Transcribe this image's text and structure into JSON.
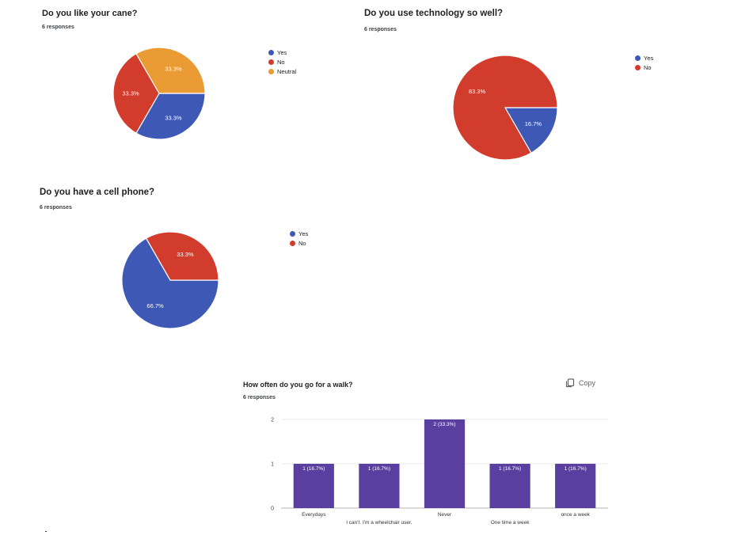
{
  "colors": {
    "blue": "#3d59b5",
    "red": "#d13c2d",
    "orange": "#ea9b33",
    "purple": "#5a3fa0"
  },
  "q1": {
    "title": "Do you like your cane?",
    "responses": "6 responses",
    "chart_data": {
      "type": "pie",
      "title": "Do you like your cane?",
      "slices": [
        {
          "name": "Yes",
          "value": 33.3,
          "label": "33.3%",
          "color": "#3d59b5"
        },
        {
          "name": "No",
          "value": 33.3,
          "label": "33.3%",
          "color": "#d13c2d"
        },
        {
          "name": "Neutral",
          "value": 33.3,
          "label": "33.3%",
          "color": "#ea9b33"
        }
      ],
      "legend": "right"
    }
  },
  "q2": {
    "title": "Do you use technology so well?",
    "responses": "6 responses",
    "chart_data": {
      "type": "pie",
      "title": "Do you use technology so well?",
      "slices": [
        {
          "name": "Yes",
          "value": 16.7,
          "label": "16.7%",
          "color": "#3d59b5"
        },
        {
          "name": "No",
          "value": 83.3,
          "label": "83.3%",
          "color": "#d13c2d"
        }
      ],
      "legend": "right"
    }
  },
  "q3": {
    "title": "Do you have a cell phone?",
    "responses": "6 responses",
    "chart_data": {
      "type": "pie",
      "title": "Do you have a cell phone?",
      "slices": [
        {
          "name": "Yes",
          "value": 66.7,
          "label": "66.7%",
          "color": "#3d59b5"
        },
        {
          "name": "No",
          "value": 33.3,
          "label": "33.3%",
          "color": "#d13c2d"
        }
      ],
      "legend": "right"
    }
  },
  "q4": {
    "title": "How often do you go for a walk?",
    "responses": "6 responses",
    "copy_label": "Copy",
    "chart_data": {
      "type": "bar",
      "title": "How often do you go for a walk?",
      "categories": [
        "Everydays",
        "I can't. I'm a wheelchair user.",
        "Never",
        "One time a week",
        "once a week"
      ],
      "values": [
        1,
        1,
        2,
        1,
        1
      ],
      "data_labels": [
        "1 (16.7%)",
        "1 (16.7%)",
        "2 (33.3%)",
        "1 (16.7%)",
        "1 (16.7%)"
      ],
      "yticks": [
        0,
        1,
        2
      ],
      "ylim": [
        0,
        2
      ],
      "grid": true,
      "color": "#5a3fa0"
    }
  }
}
